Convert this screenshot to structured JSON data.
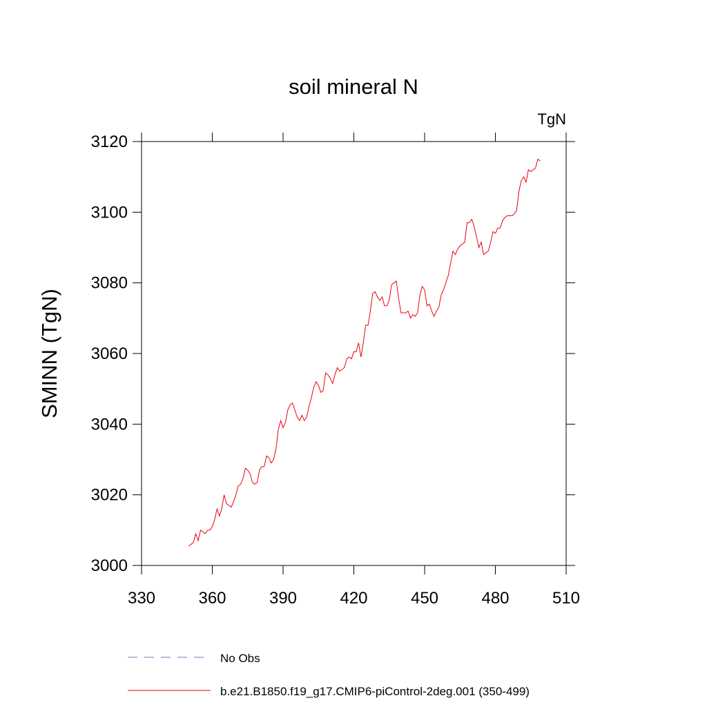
{
  "chart_data": {
    "type": "line",
    "title": "soil mineral N",
    "units": "TgN",
    "y_label": "SMINN  (TgN)",
    "xlim": [
      330,
      510
    ],
    "xticks": [
      330,
      360,
      390,
      420,
      450,
      480,
      510
    ],
    "ylim": [
      3000,
      3120
    ],
    "yticks": [
      3000,
      3020,
      3040,
      3060,
      3080,
      3100,
      3120
    ],
    "x": [
      350,
      351,
      352,
      353,
      354,
      355,
      356,
      357,
      358,
      359,
      360,
      361,
      362,
      363,
      364,
      365,
      366,
      367,
      368,
      369,
      370,
      371,
      372,
      373,
      374,
      375,
      376,
      377,
      378,
      379,
      380,
      381,
      382,
      383,
      384,
      385,
      386,
      387,
      388,
      389,
      390,
      391,
      392,
      393,
      394,
      395,
      396,
      397,
      398,
      399,
      400,
      401,
      402,
      403,
      404,
      405,
      406,
      407,
      408,
      409,
      410,
      411,
      412,
      413,
      414,
      415,
      416,
      417,
      418,
      419,
      420,
      421,
      422,
      423,
      424,
      425,
      426,
      427,
      428,
      429,
      430,
      431,
      432,
      433,
      434,
      435,
      436,
      437,
      438,
      439,
      440,
      441,
      442,
      443,
      444,
      445,
      446,
      447,
      448,
      449,
      450,
      451,
      452,
      453,
      454,
      455,
      456,
      457,
      458,
      459,
      460,
      461,
      462,
      463,
      464,
      465,
      466,
      467,
      468,
      469,
      470,
      471,
      472,
      473,
      474,
      475,
      476,
      477,
      478,
      479,
      480,
      481,
      482,
      483,
      484,
      485,
      486,
      487,
      488,
      489,
      490,
      491,
      492,
      493,
      494,
      495,
      496,
      497,
      498,
      499
    ],
    "series": [
      {
        "name": "No Obs",
        "color": "#7a6fc0",
        "dashed": true,
        "values": [
          null,
          null,
          null,
          null,
          null,
          null,
          null,
          null,
          null,
          null,
          null,
          null,
          null,
          null,
          null,
          null,
          null,
          null,
          null,
          null,
          null,
          null,
          null,
          null,
          null,
          null,
          null,
          null,
          null,
          null,
          null,
          null,
          null,
          null,
          null,
          null,
          null,
          null,
          null,
          null,
          null,
          null,
          null,
          null,
          null,
          null,
          null,
          null,
          null,
          null,
          null,
          null,
          null,
          null,
          null,
          null,
          null,
          null,
          null,
          null,
          null,
          null,
          null,
          null,
          null,
          null,
          null,
          null,
          null,
          null,
          null,
          null,
          null,
          null,
          null,
          null,
          null,
          null,
          null,
          null,
          null,
          null,
          null,
          null,
          null,
          null,
          null,
          null,
          null,
          null,
          null,
          null,
          null,
          null,
          null,
          null,
          null,
          null,
          null,
          null,
          null,
          null,
          null,
          null,
          null,
          null,
          null,
          null,
          null,
          null,
          null,
          null,
          null,
          null,
          null,
          null,
          null,
          null,
          null,
          null,
          null,
          null,
          null,
          null,
          null,
          null,
          null,
          null,
          null,
          null,
          null,
          null,
          null,
          null,
          null,
          null,
          null,
          null,
          null,
          null,
          null,
          null,
          null,
          null,
          null,
          null,
          null,
          null,
          null,
          null
        ]
      },
      {
        "name": "b.e21.B1850.f19_g17.CMIP6-piControl-2deg.001 (350-499)",
        "color": "#e8000b",
        "dashed": false,
        "values": [
          3005.5,
          3006,
          3006.5,
          3009,
          3007,
          3010,
          3009.5,
          3009,
          3010,
          3010,
          3011,
          3013,
          3016,
          3014,
          3016,
          3020,
          3017.5,
          3017,
          3016.5,
          3018,
          3020,
          3022.5,
          3023,
          3024.5,
          3027.5,
          3027,
          3026,
          3023.5,
          3023,
          3023.5,
          3027,
          3028,
          3028,
          3031,
          3030.5,
          3029,
          3030,
          3033,
          3038.5,
          3041,
          3039,
          3040.5,
          3044,
          3045.5,
          3046,
          3044,
          3042,
          3041,
          3042.5,
          3041,
          3042,
          3045,
          3047.5,
          3050.5,
          3052,
          3051,
          3049,
          3049.5,
          3054.5,
          3054,
          3053,
          3051.5,
          3054,
          3056,
          3055,
          3055.5,
          3056,
          3058.5,
          3059,
          3058.5,
          3060.5,
          3060.5,
          3063,
          3059,
          3063,
          3068,
          3068,
          3072,
          3077,
          3077.5,
          3076,
          3075,
          3076,
          3073.5,
          3073.5,
          3075,
          3079.5,
          3080,
          3080.5,
          3075.5,
          3071.5,
          3071.5,
          3071.5,
          3072,
          3070,
          3071,
          3070.5,
          3071.5,
          3076.5,
          3079,
          3078,
          3073.5,
          3074,
          3072,
          3070.5,
          3072,
          3073,
          3076.5,
          3078,
          3080,
          3082,
          3085.5,
          3089,
          3088,
          3089.5,
          3090.5,
          3091,
          3091.5,
          3097,
          3097,
          3098,
          3096,
          3093,
          3090,
          3091.5,
          3088,
          3088.5,
          3089,
          3091.5,
          3094.5,
          3094,
          3095.5,
          3095.5,
          3097.5,
          3098.5,
          3099,
          3099,
          3099,
          3099.5,
          3100.5,
          3106,
          3109,
          3110,
          3108.5,
          3112,
          3111.5,
          3112,
          3112.5,
          3115,
          3114.5
        ]
      }
    ]
  }
}
